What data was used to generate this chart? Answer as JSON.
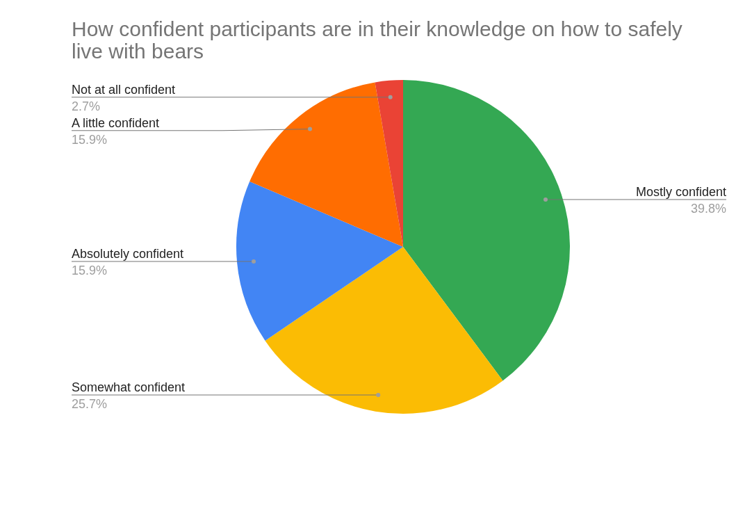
{
  "chart_data": {
    "type": "pie",
    "title": "How confident participants are in their knowledge on how to safely live with bears",
    "categories": [
      "Mostly confident",
      "Somewhat confident",
      "Absolutely confident",
      "A little confident",
      "Not at all confident"
    ],
    "values": [
      39.8,
      25.7,
      15.9,
      15.9,
      2.7
    ],
    "colors": [
      "#34a853",
      "#fbbc04",
      "#4285f4",
      "#ff6d01",
      "#ea4335"
    ],
    "value_labels": [
      "39.8%",
      "25.7%",
      "15.9%",
      "15.9%",
      "2.7%"
    ]
  }
}
